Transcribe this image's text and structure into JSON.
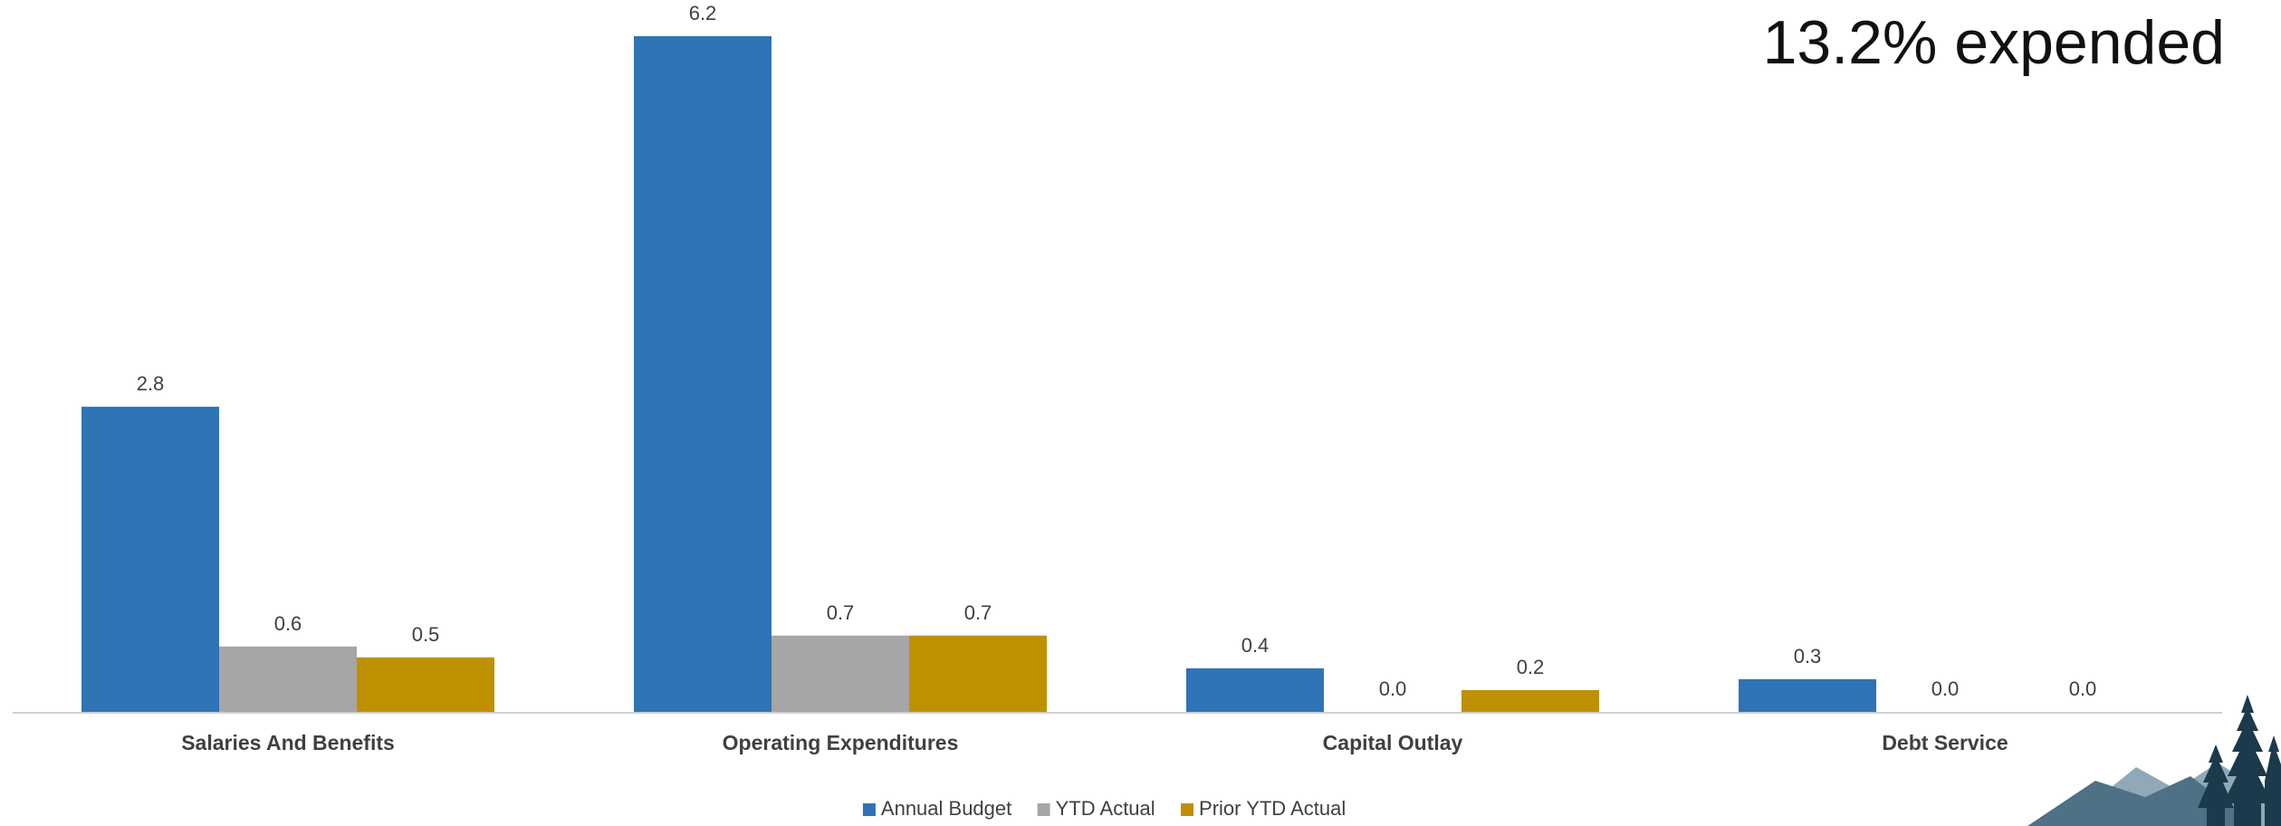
{
  "headline": "13.2% expended",
  "chart_data": {
    "type": "bar",
    "categories": [
      "Salaries And Benefits",
      "Operating Expenditures",
      "Capital Outlay",
      "Debt Service"
    ],
    "series": [
      {
        "name": "Annual Budget",
        "values": [
          2.8,
          6.2,
          0.4,
          0.3
        ],
        "labels": [
          "2.8",
          "6.2",
          "0.4",
          "0.3"
        ],
        "color": "#2E74B5"
      },
      {
        "name": "YTD Actual",
        "values": [
          0.6,
          0.7,
          0.0,
          0.0
        ],
        "labels": [
          "0.6",
          "0.7",
          "0.0",
          "0.0"
        ],
        "color": "#A6A6A6"
      },
      {
        "name": "Prior YTD Actual",
        "values": [
          0.5,
          0.7,
          0.2,
          0.0
        ],
        "labels": [
          "0.5",
          "0.7",
          "0.2",
          "0.0"
        ],
        "color": "#BF9000"
      }
    ],
    "ylim": [
      0,
      6.2
    ],
    "grid": false,
    "legend_position": "bottom"
  },
  "colors": {
    "axis": "#D0D0D0",
    "label_text": "#404040",
    "logo_dark": "#1B3A4B",
    "logo_mid": "#4E7186",
    "logo_light": "#8FA9B8"
  },
  "logo_icon": "mountains-and-pine-trees-logo"
}
